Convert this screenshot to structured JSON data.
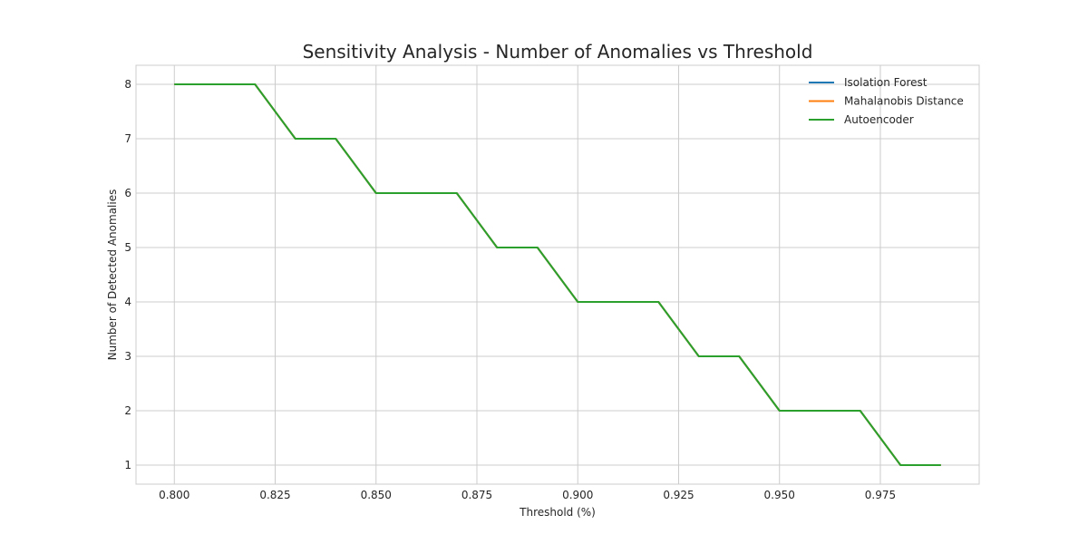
{
  "chart_data": {
    "type": "line",
    "title": "Sensitivity Analysis - Number of Anomalies vs Threshold",
    "xlabel": "Threshold (%)",
    "ylabel": "Number of Detected Anomalies",
    "x": [
      0.8,
      0.81,
      0.82,
      0.83,
      0.84,
      0.85,
      0.86,
      0.87,
      0.88,
      0.89,
      0.9,
      0.91,
      0.92,
      0.93,
      0.94,
      0.95,
      0.96,
      0.97,
      0.98,
      0.99
    ],
    "series": [
      {
        "name": "Isolation Forest",
        "color": "#1f77b4",
        "values": [
          8,
          8,
          8,
          7,
          7,
          6,
          6,
          6,
          5,
          5,
          4,
          4,
          4,
          3,
          3,
          2,
          2,
          2,
          1,
          1
        ]
      },
      {
        "name": "Mahalanobis Distance",
        "color": "#ff7f0e",
        "values": [
          8,
          8,
          8,
          7,
          7,
          6,
          6,
          6,
          5,
          5,
          4,
          4,
          4,
          3,
          3,
          2,
          2,
          2,
          1,
          1
        ]
      },
      {
        "name": "Autoencoder",
        "color": "#2ca02c",
        "values": [
          8,
          8,
          8,
          7,
          7,
          6,
          6,
          6,
          5,
          5,
          4,
          4,
          4,
          3,
          3,
          2,
          2,
          2,
          1,
          1
        ]
      }
    ],
    "xlim": [
      0.7905,
      0.9995
    ],
    "ylim": [
      0.65,
      8.35
    ],
    "xticks": [
      0.8,
      0.825,
      0.85,
      0.875,
      0.9,
      0.925,
      0.95,
      0.975
    ],
    "xtick_labels": [
      "0.800",
      "0.825",
      "0.850",
      "0.875",
      "0.900",
      "0.925",
      "0.950",
      "0.975"
    ],
    "yticks": [
      1,
      2,
      3,
      4,
      5,
      6,
      7,
      8
    ],
    "ytick_labels": [
      "1",
      "2",
      "3",
      "4",
      "5",
      "6",
      "7",
      "8"
    ],
    "grid": true,
    "legend_position": "top-right"
  }
}
